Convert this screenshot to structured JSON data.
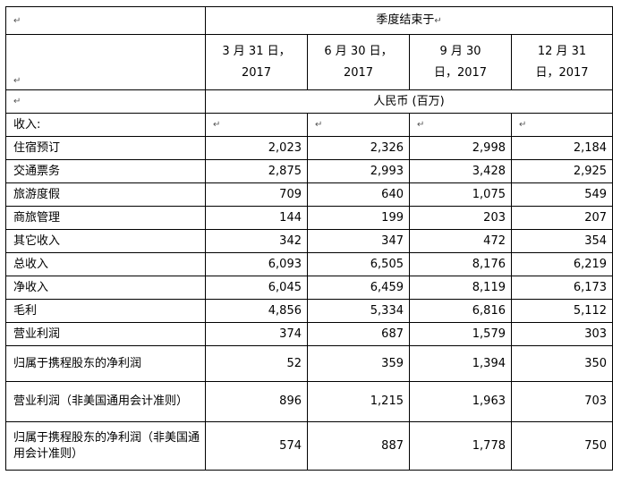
{
  "header": {
    "group_title": "季度结束于",
    "periods": [
      {
        "line1": "3 月 31 日，",
        "line2": "2017"
      },
      {
        "line1": "6 月 30 日，",
        "line2": "2017"
      },
      {
        "line1": "9 月 30",
        "line2": "日，2017"
      },
      {
        "line1": "12 月 31",
        "line2": "日，2017"
      }
    ],
    "currency": "人民币 (百万)"
  },
  "section_label": "收入:",
  "rows": [
    {
      "label": "住宿预订",
      "values": [
        "2,023",
        "2,326",
        "2,998",
        "2,184"
      ]
    },
    {
      "label": "交通票务",
      "values": [
        "2,875",
        "2,993",
        "3,428",
        "2,925"
      ]
    },
    {
      "label": "旅游度假",
      "values": [
        "709",
        "640",
        "1,075",
        "549"
      ]
    },
    {
      "label": "商旅管理",
      "values": [
        "144",
        "199",
        "203",
        "207"
      ]
    },
    {
      "label": "其它收入",
      "values": [
        "342",
        "347",
        "472",
        "354"
      ]
    },
    {
      "label": "总收入",
      "values": [
        "6,093",
        "6,505",
        "8,176",
        "6,219"
      ]
    },
    {
      "label": "净收入",
      "values": [
        "6,045",
        "6,459",
        "8,119",
        "6,173"
      ]
    },
    {
      "label": "毛利",
      "values": [
        "4,856",
        "5,334",
        "6,816",
        "5,112"
      ]
    },
    {
      "label": "营业利润",
      "values": [
        "374",
        "687",
        "1,579",
        "303"
      ]
    },
    {
      "label": "归属于携程股东的净利润",
      "values": [
        "52",
        "359",
        "1,394",
        "350"
      ]
    },
    {
      "label": "营业利润（非美国通用会计准则）",
      "values": [
        "896",
        "1,215",
        "1,963",
        "703"
      ]
    },
    {
      "label": "归属于携程股东的净利润（非美国通用会计准则）",
      "values": [
        "574",
        "887",
        "1,778",
        "750"
      ]
    }
  ],
  "marks": {
    "cell_end": "↵",
    "soft_return": "↵"
  }
}
